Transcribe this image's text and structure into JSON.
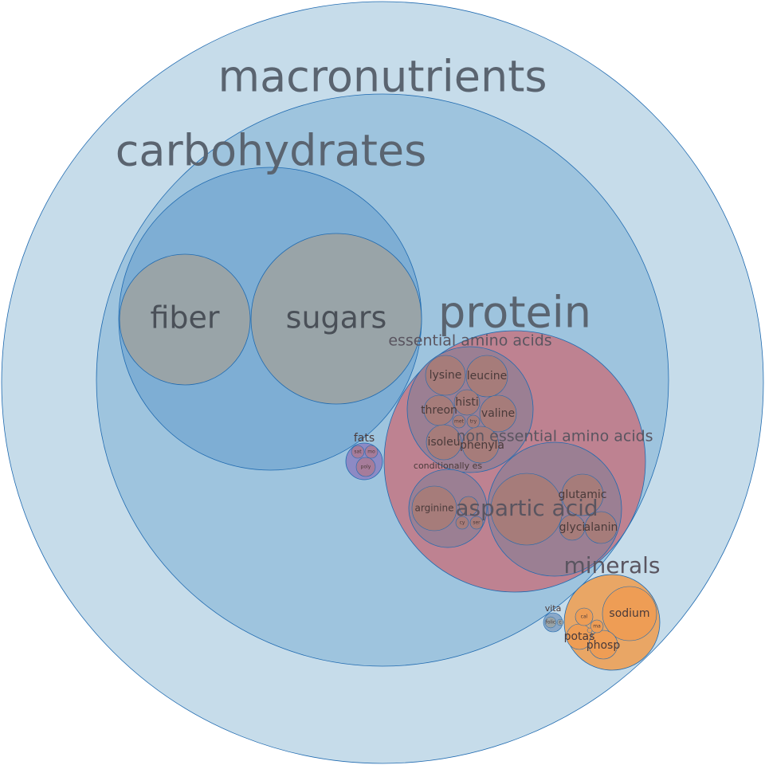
{
  "nodes": {
    "macronutrients": "macronutrients",
    "carbohydrates": "carbohydrates",
    "fiber": "fiber",
    "sugars": "sugars",
    "protein": "protein",
    "essential_amino_acids": "essential amino acids",
    "lysine": "lysine",
    "leucine": "leucine",
    "threon": "threon",
    "histi": "histi",
    "valine": "valine",
    "isoleu": "isoleu",
    "phenyla": "phenyla",
    "met": "met",
    "try": "try",
    "non_essential_amino_acids": "non essential amino acids",
    "aspartic_acid": "aspartic acid",
    "glutamic": "glutamic",
    "glycine": "glyci",
    "alanine": "alanin",
    "conditionally_essential": "conditionally es",
    "arginine": "arginine",
    "cys": "cy",
    "ser": "ser",
    "fats": "fats",
    "sat": "sat",
    "mono": "mo",
    "poly": "poly",
    "minerals": "minerals",
    "sodium": "sodium",
    "potassium": "potas",
    "phosphorus": "phosp",
    "calcium": "cal",
    "magnesium": "ma",
    "vitamins": "vita",
    "vit_b": "folic",
    "vit_c": "c"
  },
  "colors": {
    "outer_fill": "#c6dcea",
    "carb_group_fill": "#9ec4de",
    "carb_fill": "#7eaed4",
    "leaf_gray": "#99a4a8",
    "protein_fill": "#be8291",
    "amino_group_fill": "#9b7f93",
    "amino_leaf_fill": "#a67c7a",
    "fats_fill": "#8d8ac4",
    "minerals_fill": "#e9a665",
    "sodium_fill": "#ee9d55",
    "stroke": "#1f6ab0"
  }
}
